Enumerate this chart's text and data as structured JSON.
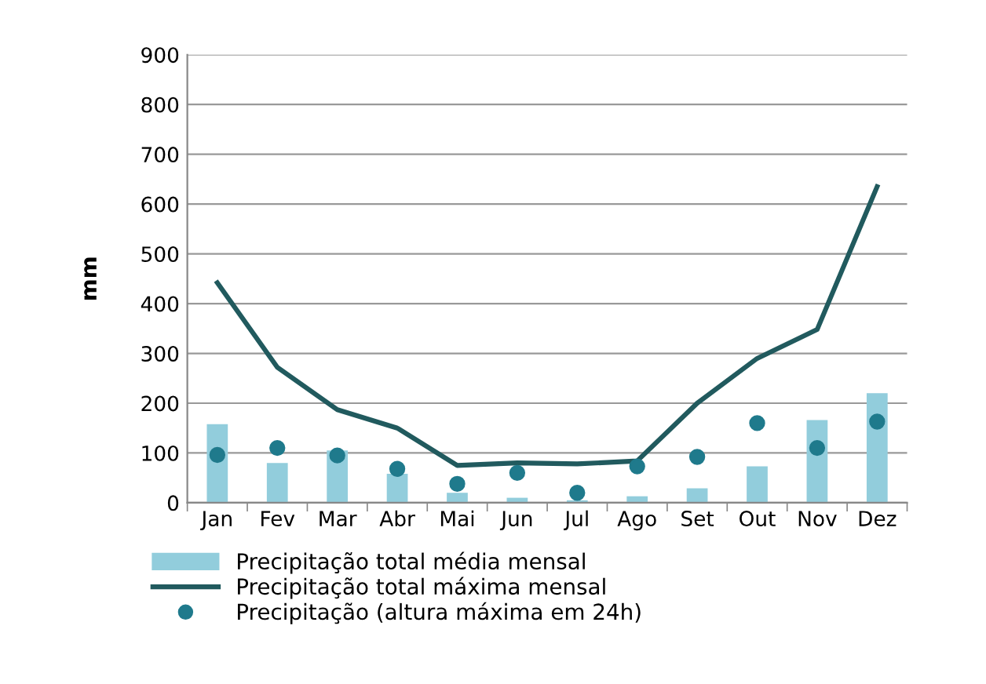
{
  "chart_data": {
    "type": "bar",
    "ylabel": "mm",
    "categories": [
      "Jan",
      "Fev",
      "Mar",
      "Abr",
      "Mai",
      "Jun",
      "Jul",
      "Ago",
      "Set",
      "Out",
      "Nov",
      "Dez"
    ],
    "series": [
      {
        "name": "Precipitação total média mensal",
        "color": "#92cddc",
        "values": [
          158,
          80,
          105,
          58,
          20,
          10,
          5,
          13,
          29,
          73,
          166,
          220
        ]
      },
      {
        "name": "Precipitação total máxima mensal",
        "type": "line",
        "color": "#215a5e",
        "values": [
          442,
          272,
          187,
          150,
          75,
          80,
          78,
          84,
          200,
          290,
          348,
          635
        ]
      },
      {
        "name": "Precipitação (altura máxima em 24h)",
        "type": "scatter",
        "color": "#1f7a8c",
        "marker": "circle",
        "values": [
          96,
          110,
          95,
          68,
          38,
          60,
          20,
          73,
          92,
          160,
          110,
          163
        ]
      }
    ],
    "ylim": [
      0,
      900
    ],
    "yticks": [
      0,
      100,
      200,
      300,
      400,
      500,
      600,
      700,
      800,
      900
    ],
    "grid": "y",
    "legend": "bottom"
  }
}
